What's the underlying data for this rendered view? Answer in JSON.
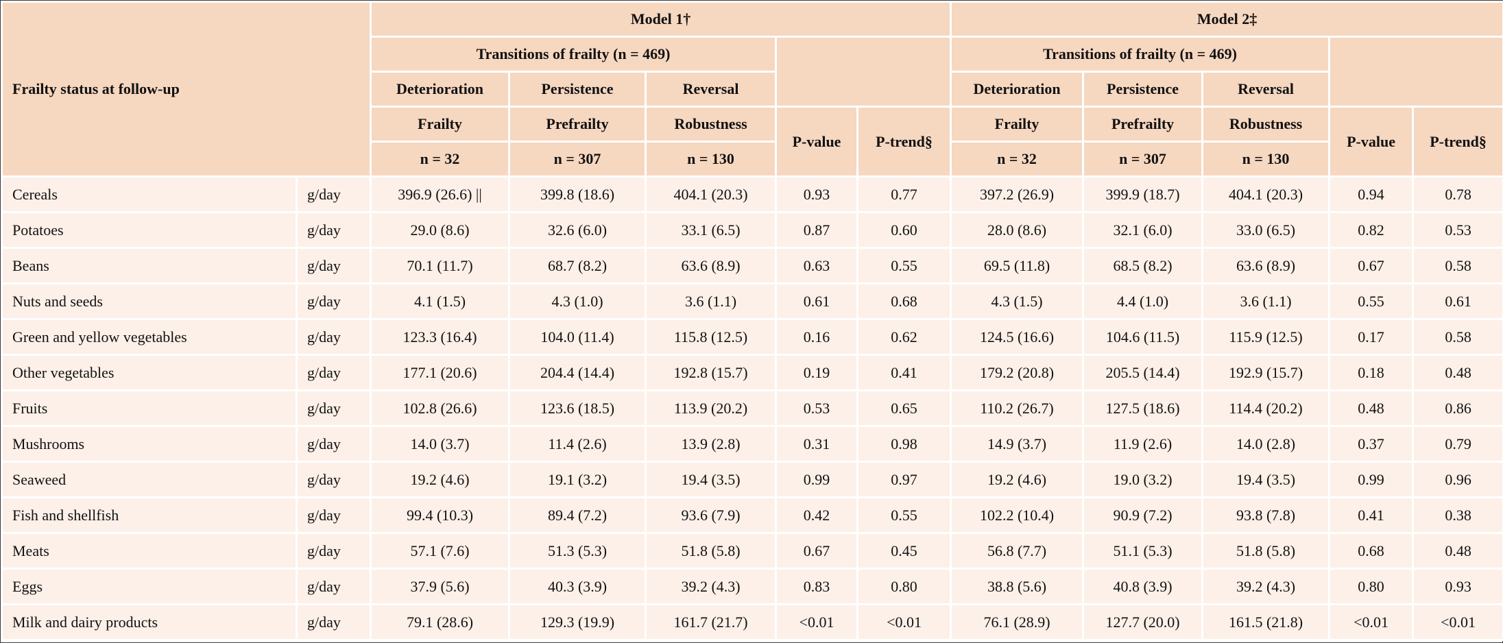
{
  "header": {
    "row_label": "Frailty status at follow-up",
    "model1": "Model 1†",
    "model2": "Model 2‡",
    "transitions": "Transitions of frailty (n = 469)",
    "transition_types": [
      "Deterioration",
      "Persistence",
      "Reversal"
    ],
    "statuses": [
      "Frailty",
      "Prefrailty",
      "Robustness"
    ],
    "ns": [
      "n = 32",
      "n = 307",
      "n = 130"
    ],
    "p_value": "P-value",
    "p_trend": "P-trend§"
  },
  "rows": [
    {
      "food": "Cereals",
      "unit": "g/day",
      "m1": [
        "396.9 (26.6) ||",
        "399.8 (18.6)",
        "404.1 (20.3)",
        "0.93",
        "0.77"
      ],
      "m2": [
        "397.2 (26.9)",
        "399.9 (18.7)",
        "404.1 (20.3)",
        "0.94",
        "0.78"
      ]
    },
    {
      "food": "Potatoes",
      "unit": "g/day",
      "m1": [
        "29.0 (8.6)",
        "32.6 (6.0)",
        "33.1 (6.5)",
        "0.87",
        "0.60"
      ],
      "m2": [
        "28.0 (8.6)",
        "32.1 (6.0)",
        "33.0 (6.5)",
        "0.82",
        "0.53"
      ]
    },
    {
      "food": "Beans",
      "unit": "g/day",
      "m1": [
        "70.1 (11.7)",
        "68.7 (8.2)",
        "63.6 (8.9)",
        "0.63",
        "0.55"
      ],
      "m2": [
        "69.5 (11.8)",
        "68.5 (8.2)",
        "63.6 (8.9)",
        "0.67",
        "0.58"
      ]
    },
    {
      "food": "Nuts and seeds",
      "unit": "g/day",
      "m1": [
        "4.1 (1.5)",
        "4.3 (1.0)",
        "3.6 (1.1)",
        "0.61",
        "0.68"
      ],
      "m2": [
        "4.3 (1.5)",
        "4.4 (1.0)",
        "3.6 (1.1)",
        "0.55",
        "0.61"
      ]
    },
    {
      "food": "Green and yellow vegetables",
      "unit": "g/day",
      "m1": [
        "123.3 (16.4)",
        "104.0 (11.4)",
        "115.8 (12.5)",
        "0.16",
        "0.62"
      ],
      "m2": [
        "124.5 (16.6)",
        "104.6 (11.5)",
        "115.9 (12.5)",
        "0.17",
        "0.58"
      ]
    },
    {
      "food": "Other vegetables",
      "unit": "g/day",
      "m1": [
        "177.1 (20.6)",
        "204.4 (14.4)",
        "192.8 (15.7)",
        "0.19",
        "0.41"
      ],
      "m2": [
        "179.2 (20.8)",
        "205.5 (14.4)",
        "192.9 (15.7)",
        "0.18",
        "0.48"
      ]
    },
    {
      "food": "Fruits",
      "unit": "g/day",
      "m1": [
        "102.8 (26.6)",
        "123.6 (18.5)",
        "113.9 (20.2)",
        "0.53",
        "0.65"
      ],
      "m2": [
        "110.2 (26.7)",
        "127.5 (18.6)",
        "114.4 (20.2)",
        "0.48",
        "0.86"
      ]
    },
    {
      "food": "Mushrooms",
      "unit": "g/day",
      "m1": [
        "14.0 (3.7)",
        "11.4 (2.6)",
        "13.9 (2.8)",
        "0.31",
        "0.98"
      ],
      "m2": [
        "14.9 (3.7)",
        "11.9 (2.6)",
        "14.0 (2.8)",
        "0.37",
        "0.79"
      ]
    },
    {
      "food": "Seaweed",
      "unit": "g/day",
      "m1": [
        "19.2 (4.6)",
        "19.1 (3.2)",
        "19.4 (3.5)",
        "0.99",
        "0.97"
      ],
      "m2": [
        "19.2 (4.6)",
        "19.0 (3.2)",
        "19.4 (3.5)",
        "0.99",
        "0.96"
      ]
    },
    {
      "food": "Fish and shellfish",
      "unit": "g/day",
      "m1": [
        "99.4 (10.3)",
        "89.4 (7.2)",
        "93.6 (7.9)",
        "0.42",
        "0.55"
      ],
      "m2": [
        "102.2 (10.4)",
        "90.9 (7.2)",
        "93.8 (7.8)",
        "0.41",
        "0.38"
      ]
    },
    {
      "food": "Meats",
      "unit": "g/day",
      "m1": [
        "57.1 (7.6)",
        "51.3 (5.3)",
        "51.8 (5.8)",
        "0.67",
        "0.45"
      ],
      "m2": [
        "56.8 (7.7)",
        "51.1 (5.3)",
        "51.8 (5.8)",
        "0.68",
        "0.48"
      ]
    },
    {
      "food": "Eggs",
      "unit": "g/day",
      "m1": [
        "37.9 (5.6)",
        "40.3 (3.9)",
        "39.2 (4.3)",
        "0.83",
        "0.80"
      ],
      "m2": [
        "38.8 (5.6)",
        "40.8 (3.9)",
        "39.2 (4.3)",
        "0.80",
        "0.93"
      ]
    },
    {
      "food": "Milk and dairy products",
      "unit": "g/day",
      "m1": [
        "79.1 (28.6)",
        "129.3 (19.9)",
        "161.7 (21.7)",
        "<0.01",
        "<0.01"
      ],
      "m2": [
        "76.1 (28.9)",
        "127.7 (20.0)",
        "161.5 (21.8)",
        "<0.01",
        "<0.01"
      ]
    }
  ]
}
